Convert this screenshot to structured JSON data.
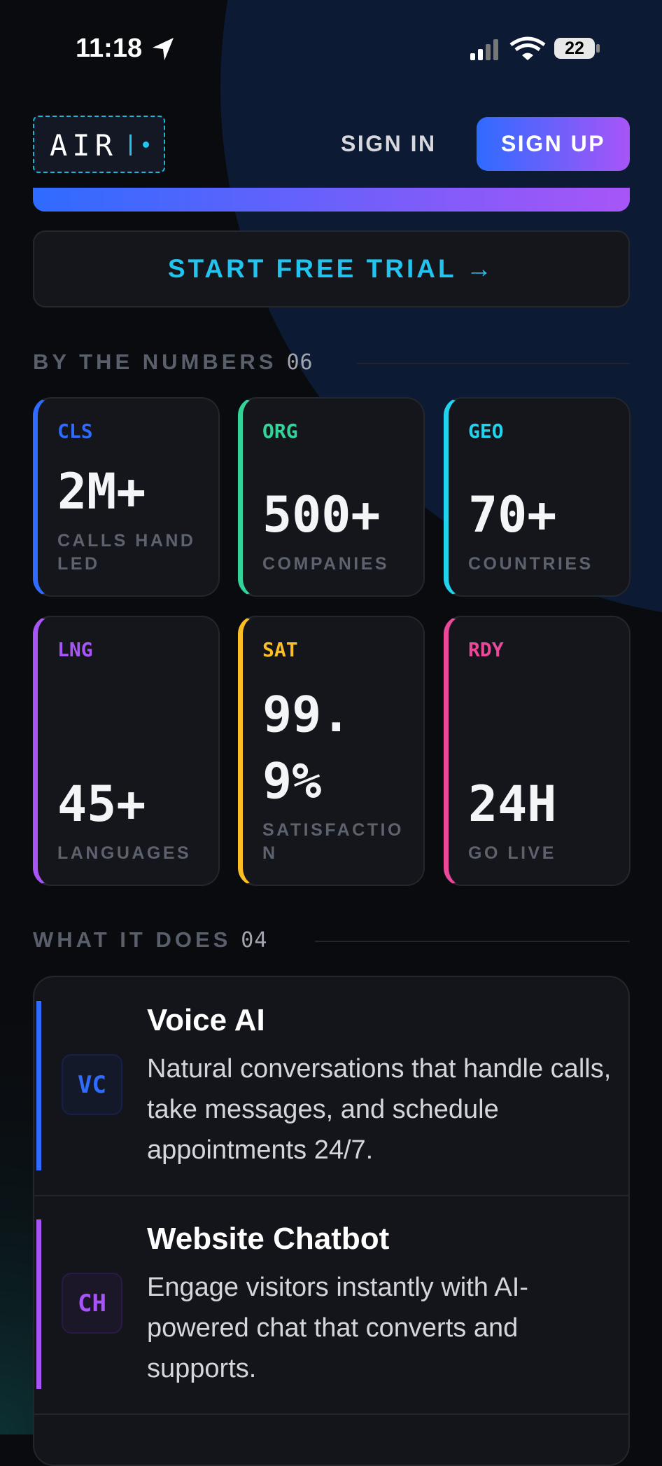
{
  "status_bar": {
    "time": "11:18",
    "battery": "22"
  },
  "header": {
    "logo": "AIR",
    "sign_in": "SIGN IN",
    "sign_up": "SIGN UP"
  },
  "cta": "START FREE TRIAL →",
  "stats": {
    "title": "BY THE NUMBERS",
    "count": "06",
    "items": [
      {
        "code": "CLS",
        "value": "2M+",
        "label": "CALLS HANDLED"
      },
      {
        "code": "ORG",
        "value": "500+",
        "label": "COMPANIES"
      },
      {
        "code": "GEO",
        "value": "70+",
        "label": "COUNTRIES"
      },
      {
        "code": "LNG",
        "value": "45+",
        "label": "LANGUAGES"
      },
      {
        "code": "SAT",
        "value": "99.9%",
        "label": "SATISFACTION"
      },
      {
        "code": "RDY",
        "value": "24H",
        "label": "GO LIVE"
      }
    ]
  },
  "services": {
    "title": "WHAT IT DOES",
    "count": "04",
    "items": [
      {
        "icon": "VC",
        "title": "Voice AI",
        "description": "Natural conversations that handle calls, take messages, and schedule appointments 24/7."
      },
      {
        "icon": "CH",
        "title": "Website Chatbot",
        "description": "Engage visitors instantly with AI-powered chat that converts and supports."
      }
    ]
  }
}
